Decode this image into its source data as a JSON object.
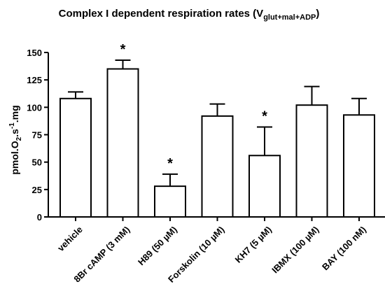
{
  "chart_data": {
    "type": "bar",
    "title": {
      "main": "Complex I dependent respiration rates (V",
      "sub": "glut+mal+ADP",
      "close": ")"
    },
    "ylabel": {
      "part1": "pmol.O",
      "sub": "2",
      "part2": ".s",
      "sup": "-1",
      "part3": ".mg"
    },
    "xlabel": "",
    "ylim": [
      0,
      150
    ],
    "yticks": [
      0,
      25,
      50,
      75,
      100,
      125,
      150
    ],
    "ytick_labels": [
      "0",
      "25",
      "50",
      "75",
      "100",
      "125",
      "150"
    ],
    "categories": [
      "vehicle",
      "8Br cAMP (3 mM)",
      "H89 (50 µM)",
      "Forskolin (10 µM)",
      "KH7 (5 µM)",
      "IBMX (100 µM)",
      "BAY (100 nM)"
    ],
    "values": [
      108,
      135,
      28,
      92,
      56,
      102,
      93
    ],
    "error_upper": [
      114,
      143,
      39,
      103,
      82,
      119,
      108
    ],
    "significance": [
      "",
      "*",
      "*",
      "",
      "*",
      "",
      ""
    ],
    "bar_fill": "#ffffff",
    "bar_stroke": "#000000",
    "grid": false,
    "legend": "none"
  }
}
